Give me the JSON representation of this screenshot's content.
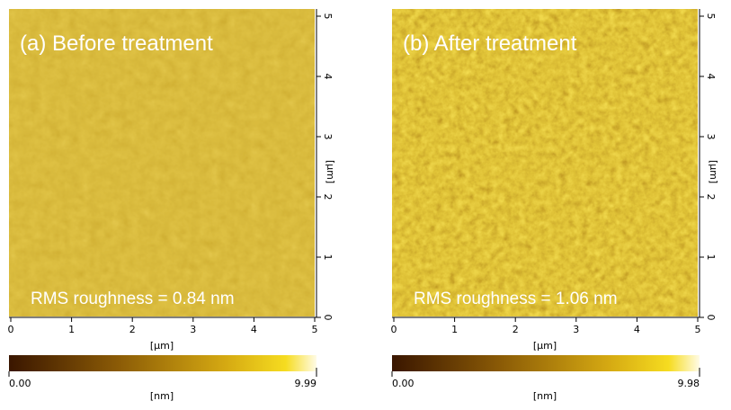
{
  "panels": [
    {
      "title": "(a) Before treatment",
      "annotation": "RMS roughness = 0.84 nm",
      "x_ticks": [
        "0",
        "1",
        "2",
        "3",
        "4",
        "5"
      ],
      "y_ticks": [
        "0",
        "1",
        "2",
        "3",
        "4",
        "5"
      ],
      "x_unit": "[µm]",
      "y_unit": "[µm]",
      "colorbar": {
        "min_label": "0.00",
        "max_label": "9.99",
        "unit": "[nm]"
      }
    },
    {
      "title": "(b) After treatment",
      "annotation": "RMS roughness = 1.06 nm",
      "x_ticks": [
        "0",
        "1",
        "2",
        "3",
        "4",
        "5"
      ],
      "y_ticks": [
        "0",
        "1",
        "2",
        "3",
        "4",
        "5"
      ],
      "x_unit": "[µm]",
      "y_unit": "[µm]",
      "colorbar": {
        "min_label": "0.00",
        "max_label": "9.98",
        "unit": "[nm]"
      }
    }
  ]
}
